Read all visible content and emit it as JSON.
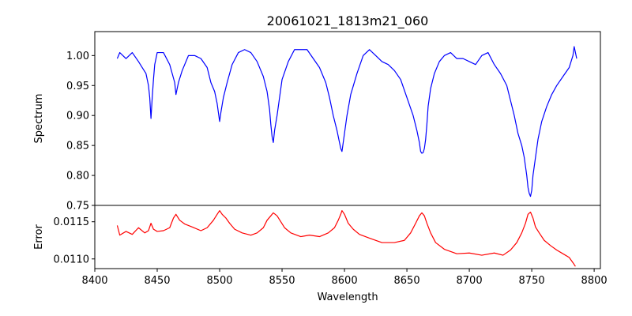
{
  "chart_data": [
    {
      "type": "line",
      "panel": "spectrum",
      "title": "20061021_1813m21_060",
      "xlabel": "",
      "ylabel": "Spectrum",
      "xlim": [
        8400,
        8805
      ],
      "ylim": [
        0.75,
        1.04
      ],
      "xticks": [],
      "yticks": [
        0.75,
        0.8,
        0.85,
        0.9,
        0.95,
        1.0
      ],
      "ytick_labels": [
        "0.75",
        "0.80",
        "0.85",
        "0.90",
        "0.95",
        "1.00"
      ],
      "series": [
        {
          "color": "#0000ff",
          "x": [
            8418,
            8420,
            8425,
            8430,
            8435,
            8438,
            8441,
            8443,
            8444,
            8445,
            8446,
            8447,
            8448,
            8450,
            8455,
            8460,
            8462,
            8464,
            8465,
            8467,
            8470,
            8475,
            8480,
            8485,
            8490,
            8493,
            8496,
            8498,
            8499,
            8500,
            8501,
            8503,
            8506,
            8510,
            8515,
            8520,
            8525,
            8530,
            8535,
            8538,
            8540,
            8541,
            8542,
            8543,
            8544,
            8546,
            8548,
            8550,
            8555,
            8560,
            8565,
            8570,
            8575,
            8580,
            8585,
            8588,
            8591,
            8594,
            8596,
            8597,
            8598,
            8599,
            8600,
            8602,
            8605,
            8610,
            8615,
            8620,
            8625,
            8630,
            8635,
            8640,
            8645,
            8650,
            8655,
            8658,
            8660,
            8661,
            8662,
            8663,
            8664,
            8665,
            8666,
            8667,
            8669,
            8672,
            8676,
            8680,
            8685,
            8690,
            8695,
            8700,
            8705,
            8710,
            8715,
            8720,
            8725,
            8730,
            8733,
            8736,
            8739,
            8742,
            8744,
            8746,
            8747,
            8748,
            8749,
            8750,
            8751,
            8753,
            8755,
            8758,
            8762,
            8766,
            8770,
            8775,
            8780,
            8783,
            8784,
            8785,
            8786
          ],
          "y": [
            0.995,
            1.005,
            0.995,
            1.005,
            0.99,
            0.98,
            0.97,
            0.95,
            0.93,
            0.895,
            0.93,
            0.96,
            0.985,
            1.005,
            1.005,
            0.985,
            0.97,
            0.955,
            0.935,
            0.955,
            0.975,
            1.0,
            1.0,
            0.995,
            0.98,
            0.955,
            0.94,
            0.92,
            0.905,
            0.89,
            0.905,
            0.93,
            0.955,
            0.985,
            1.005,
            1.01,
            1.005,
            0.99,
            0.965,
            0.94,
            0.91,
            0.885,
            0.865,
            0.855,
            0.875,
            0.9,
            0.93,
            0.96,
            0.99,
            1.01,
            1.01,
            1.01,
            0.995,
            0.98,
            0.955,
            0.93,
            0.9,
            0.875,
            0.855,
            0.845,
            0.84,
            0.855,
            0.87,
            0.9,
            0.935,
            0.97,
            1.0,
            1.01,
            1.0,
            0.99,
            0.985,
            0.975,
            0.96,
            0.93,
            0.9,
            0.875,
            0.855,
            0.84,
            0.837,
            0.838,
            0.845,
            0.86,
            0.885,
            0.915,
            0.945,
            0.97,
            0.99,
            1.0,
            1.005,
            0.995,
            0.995,
            0.99,
            0.985,
            1.0,
            1.005,
            0.985,
            0.97,
            0.95,
            0.925,
            0.9,
            0.87,
            0.85,
            0.83,
            0.8,
            0.78,
            0.77,
            0.765,
            0.775,
            0.8,
            0.83,
            0.86,
            0.89,
            0.915,
            0.935,
            0.95,
            0.965,
            0.98,
            1.0,
            1.015,
            1.005,
            0.995
          ]
        }
      ]
    },
    {
      "type": "line",
      "panel": "error",
      "title": "",
      "xlabel": "Wavelength",
      "ylabel": "Error",
      "xlim": [
        8400,
        8805
      ],
      "ylim": [
        0.01087,
        0.01172
      ],
      "xticks": [
        8400,
        8450,
        8500,
        8550,
        8600,
        8650,
        8700,
        8750,
        8800
      ],
      "xtick_labels": [
        "8400",
        "8450",
        "8500",
        "8550",
        "8600",
        "8650",
        "8700",
        "8750",
        "8800"
      ],
      "yticks": [
        0.011,
        0.0115
      ],
      "ytick_labels": [
        "0.0110",
        "0.0115"
      ],
      "series": [
        {
          "color": "#ff0000",
          "x": [
            8418,
            8420,
            8425,
            8430,
            8435,
            8440,
            8443,
            8445,
            8447,
            8450,
            8455,
            8460,
            8463,
            8465,
            8468,
            8472,
            8478,
            8485,
            8490,
            8495,
            8498,
            8500,
            8502,
            8505,
            8508,
            8512,
            8518,
            8525,
            8530,
            8535,
            8538,
            8541,
            8543,
            8546,
            8549,
            8552,
            8557,
            8565,
            8572,
            8580,
            8587,
            8592,
            8595,
            8597,
            8598,
            8600,
            8603,
            8607,
            8612,
            8620,
            8630,
            8640,
            8648,
            8653,
            8657,
            8660,
            8662,
            8664,
            8666,
            8669,
            8673,
            8680,
            8690,
            8700,
            8710,
            8720,
            8727,
            8733,
            8738,
            8742,
            8745,
            8747,
            8749,
            8751,
            8753,
            8756,
            8760,
            8765,
            8770,
            8775,
            8780,
            8783,
            8785
          ],
          "y": [
            0.01145,
            0.01132,
            0.01137,
            0.01133,
            0.01142,
            0.01135,
            0.01138,
            0.01148,
            0.0114,
            0.01137,
            0.01138,
            0.01142,
            0.01155,
            0.0116,
            0.01152,
            0.01147,
            0.01143,
            0.01138,
            0.01142,
            0.01152,
            0.0116,
            0.01165,
            0.0116,
            0.01155,
            0.01148,
            0.0114,
            0.01135,
            0.01132,
            0.01135,
            0.01142,
            0.01152,
            0.01158,
            0.01162,
            0.01158,
            0.0115,
            0.01142,
            0.01135,
            0.0113,
            0.01132,
            0.0113,
            0.01135,
            0.01142,
            0.01152,
            0.0116,
            0.01165,
            0.0116,
            0.01148,
            0.0114,
            0.01133,
            0.01128,
            0.01122,
            0.01122,
            0.01125,
            0.01135,
            0.01148,
            0.01158,
            0.01162,
            0.01158,
            0.01148,
            0.01135,
            0.01122,
            0.01113,
            0.01107,
            0.01108,
            0.01105,
            0.01108,
            0.01105,
            0.01112,
            0.01122,
            0.01135,
            0.01148,
            0.0116,
            0.01163,
            0.01155,
            0.01143,
            0.01135,
            0.01125,
            0.01118,
            0.01112,
            0.01107,
            0.01102,
            0.01095,
            0.0109
          ]
        }
      ]
    }
  ]
}
